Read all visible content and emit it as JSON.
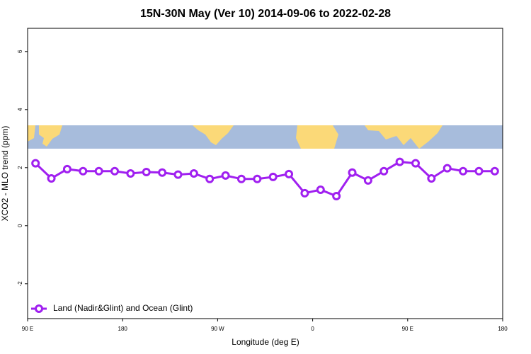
{
  "chart_data": {
    "type": "line",
    "title": "15N-30N May (Ver 10)   2014-09-06 to 2022-02-28",
    "x_label": "Longitude (deg E)",
    "y_label": "XCO2 - MLO trend (ppm)",
    "x": [
      97.5,
      112.5,
      127.5,
      142.5,
      157.5,
      172.5,
      187.5,
      202.5,
      217.5,
      232.5,
      247.5,
      262.5,
      277.5,
      292.5,
      307.5,
      322.5,
      337.5,
      352.5,
      367.5,
      382.5,
      397.5,
      412.5,
      427.5,
      442.5,
      457.5,
      472.5,
      487.5,
      502.5,
      517.5,
      532.5
    ],
    "series": [
      {
        "name": "Land (Nadir&Glint) and Ocean (Glint)",
        "color": "#a020f0",
        "values": [
          2.15,
          1.63,
          1.95,
          1.88,
          1.88,
          1.88,
          1.8,
          1.85,
          1.83,
          1.76,
          1.8,
          1.61,
          1.73,
          1.61,
          1.61,
          1.68,
          1.78,
          1.12,
          1.24,
          1.02,
          1.83,
          1.56,
          1.88,
          2.2,
          2.15,
          1.63,
          1.98,
          1.88,
          1.88,
          1.88
        ]
      }
    ],
    "xlim": [
      90,
      540
    ],
    "xticks": [
      {
        "value": 90,
        "label": "90 E"
      },
      180,
      {
        "value": 270,
        "label": "90 W"
      },
      {
        "value": 360,
        "label": "0"
      },
      {
        "value": 450,
        "label": "90 E"
      },
      {
        "value": 540,
        "label": "180"
      }
    ],
    "ylim": [
      -3.2,
      6.8
    ],
    "yticks": [
      -2,
      0,
      2,
      4,
      6
    ],
    "legend": "bottom-left"
  }
}
